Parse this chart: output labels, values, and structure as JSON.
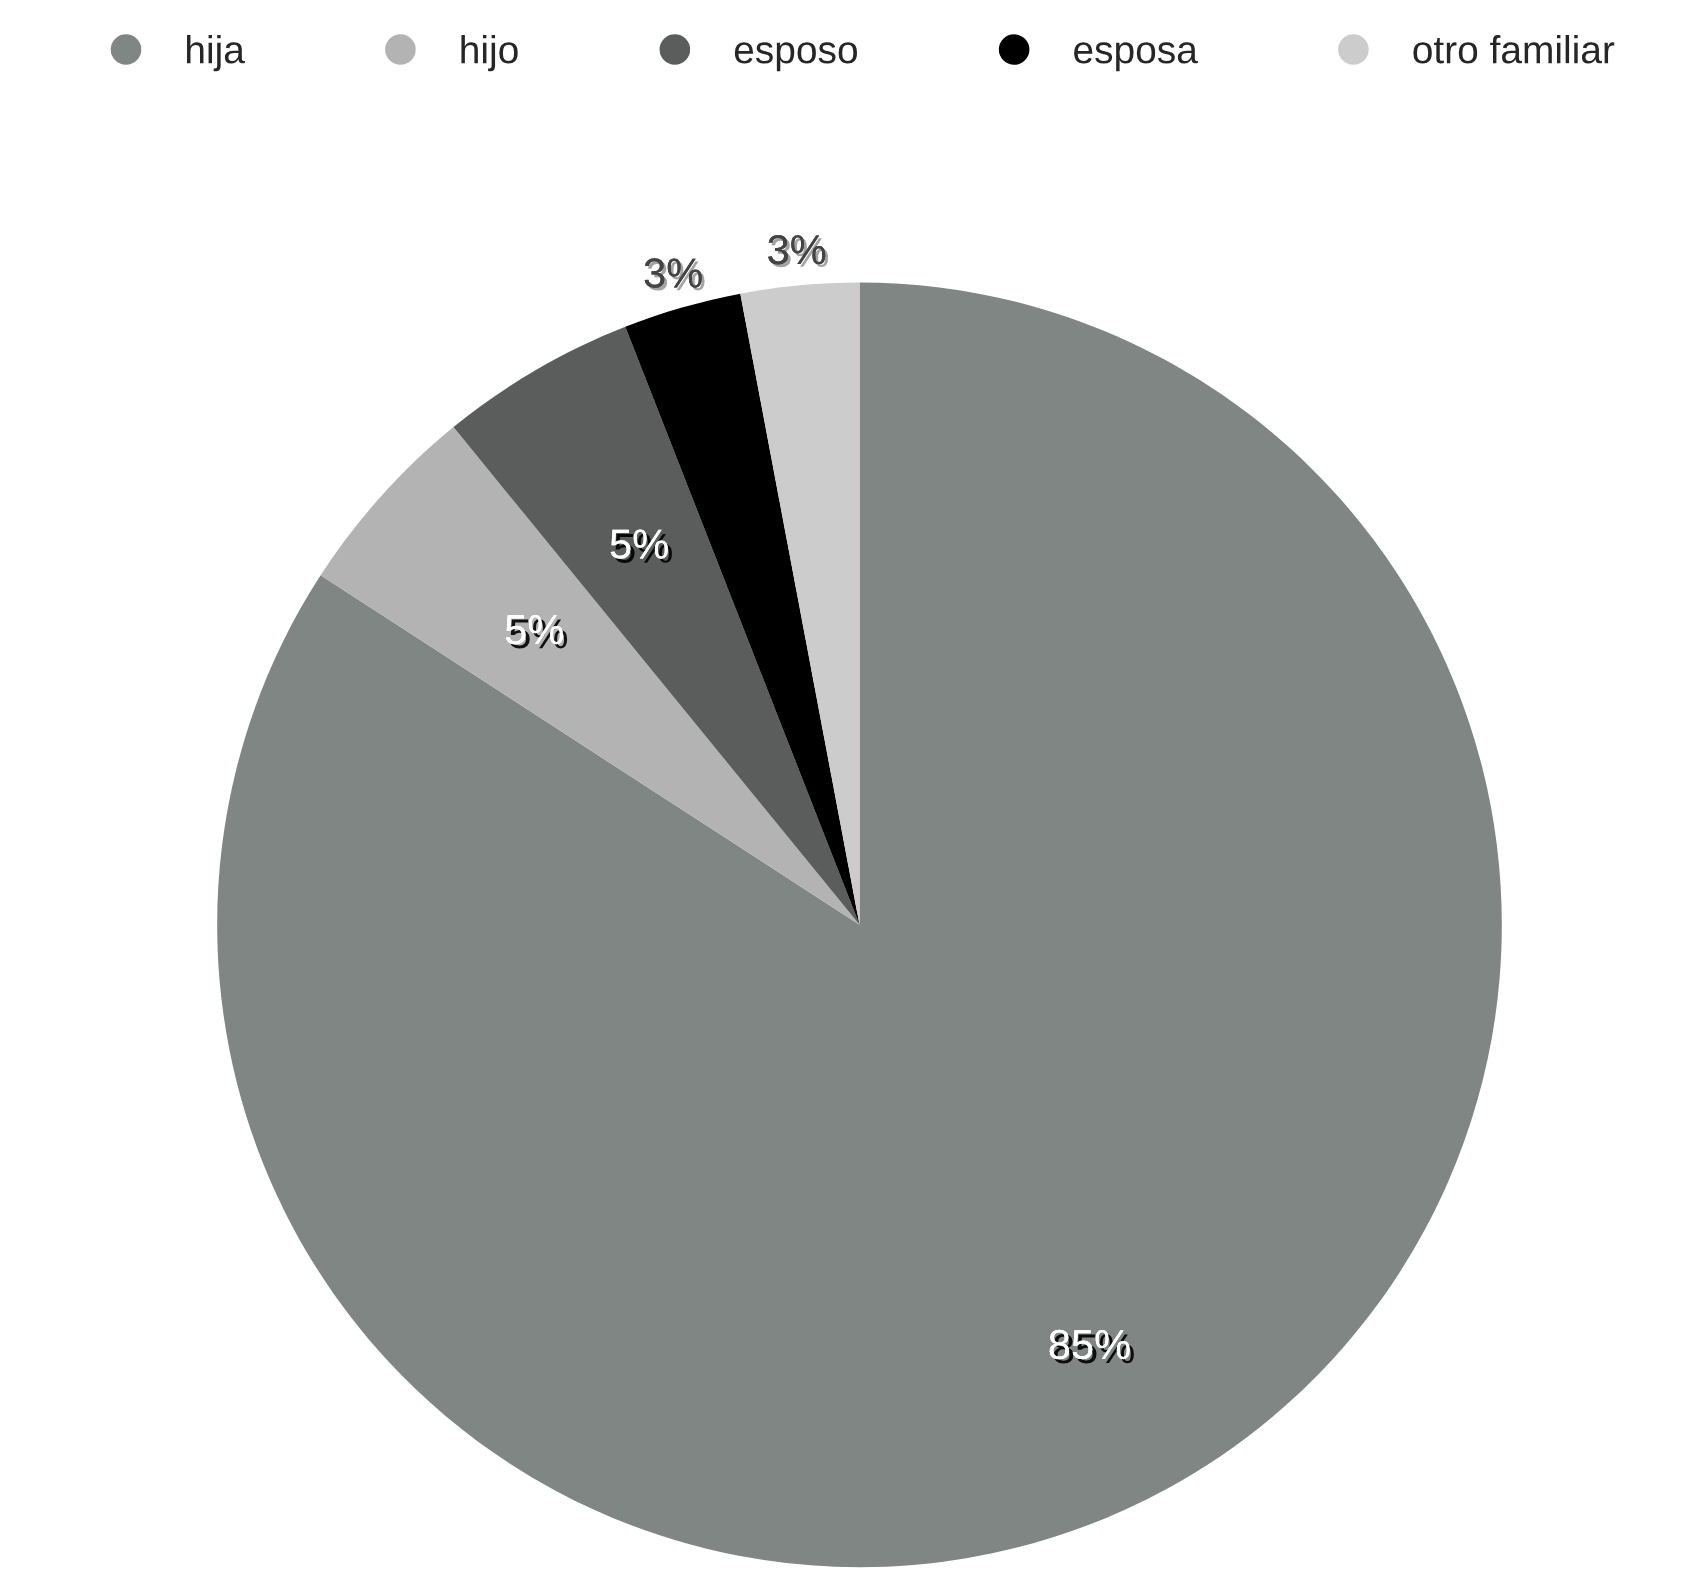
{
  "chart_data": {
    "type": "pie",
    "categories": [
      "hija",
      "hijo",
      "esposo",
      "esposa",
      "otro familiar"
    ],
    "values": [
      85,
      5,
      5,
      3,
      3
    ],
    "colors": [
      "#808683",
      "#b3b3b3",
      "#5a5d5b",
      "#000000",
      "#cccccc"
    ],
    "value_labels": [
      "85%",
      "5%",
      "5%",
      "3%",
      "3%"
    ],
    "legend": "top"
  }
}
